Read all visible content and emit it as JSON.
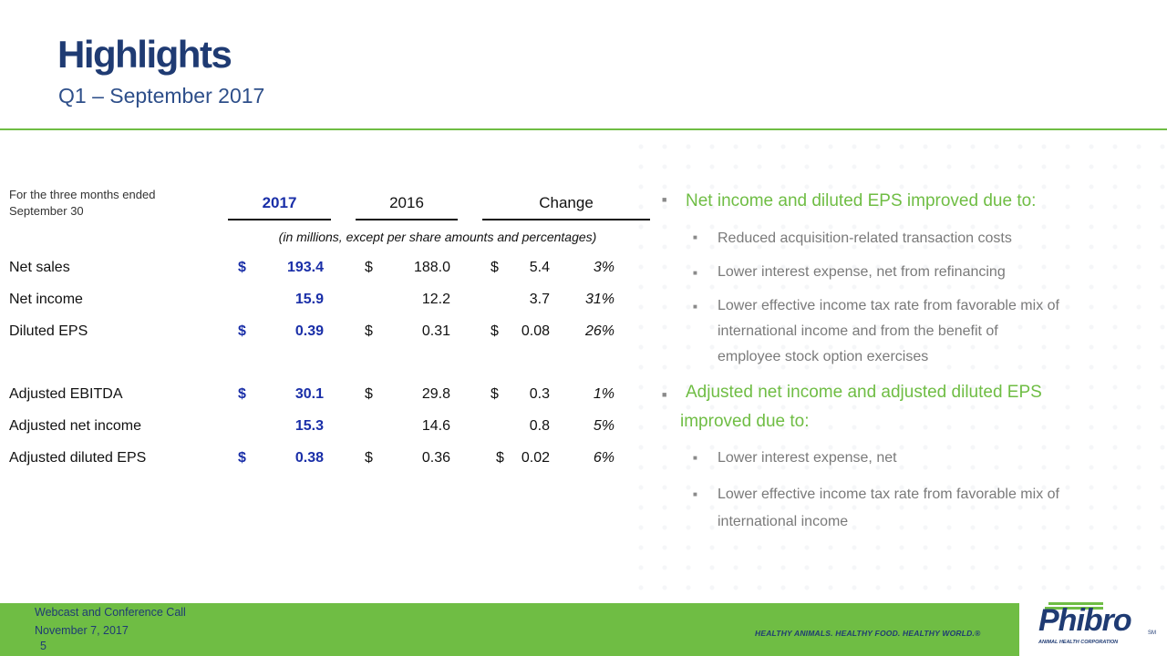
{
  "header": {
    "title": "Highlights",
    "subtitle": "Q1 – September 2017",
    "accent_color": "#6fbd44",
    "title_color": "#1f3b73"
  },
  "table": {
    "period_label": "For the three months ended September 30",
    "columns": {
      "current": "2017",
      "prior": "2016",
      "change": "Change"
    },
    "units_note": "(in millions, except per share amounts and percentages)",
    "highlight_color": "#1a2fa8",
    "rows": [
      {
        "label": "Net sales",
        "cur_dollar": "$",
        "current": "193.4",
        "prior_dollar": "$",
        "prior": "188.0",
        "chg_dollar": "$",
        "change": "5.4",
        "pct": "3%"
      },
      {
        "label": "Net income",
        "cur_dollar": "",
        "current": "15.9",
        "prior_dollar": "",
        "prior": "12.2",
        "chg_dollar": "",
        "change": "3.7",
        "pct": "31%"
      },
      {
        "label": "Diluted EPS",
        "cur_dollar": "$",
        "current": "0.39",
        "prior_dollar": "$",
        "prior": "0.31",
        "chg_dollar": "$",
        "change": "0.08",
        "pct": "26%"
      },
      {
        "label": "Adjusted EBITDA",
        "cur_dollar": "$",
        "current": "30.1",
        "prior_dollar": "$",
        "prior": "29.8",
        "chg_dollar": "$",
        "change": "0.3",
        "pct": "1%"
      },
      {
        "label": "Adjusted net income",
        "cur_dollar": "",
        "current": "15.3",
        "prior_dollar": "",
        "prior": "14.6",
        "chg_dollar": "",
        "change": "0.8",
        "pct": "5%"
      },
      {
        "label": "Adjusted diluted EPS",
        "cur_dollar": "$",
        "current": "0.38",
        "prior_dollar": "$",
        "prior": "0.36",
        "chg_dollar": "$",
        "change": "0.02",
        "pct": "6%"
      }
    ]
  },
  "commentary": {
    "point1": {
      "heading": "Net income and diluted EPS improved due to:",
      "items": [
        "Reduced acquisition-related transaction costs",
        "Lower interest expense, net from refinancing",
        "Lower effective income tax rate from favorable mix of",
        "international income and from the benefit of",
        "employee stock option exercises"
      ]
    },
    "point2": {
      "heading_line1": "Adjusted net income and adjusted diluted EPS",
      "heading_line2": "improved due to:",
      "items": [
        "Lower interest expense, net",
        "Lower effective income tax rate from favorable mix of",
        "international income"
      ]
    },
    "bullet_glyph": "■"
  },
  "footer": {
    "event": "Webcast and Conference Call",
    "date": "November 7, 2017",
    "page_number": "5",
    "tagline": "HEALTHY ANIMALS. HEALTHY FOOD. HEALTHY WORLD.®",
    "logo_word": "Phibro",
    "logo_subtitle": "ANIMAL HEALTH CORPORATION",
    "logo_mark": "SM"
  }
}
